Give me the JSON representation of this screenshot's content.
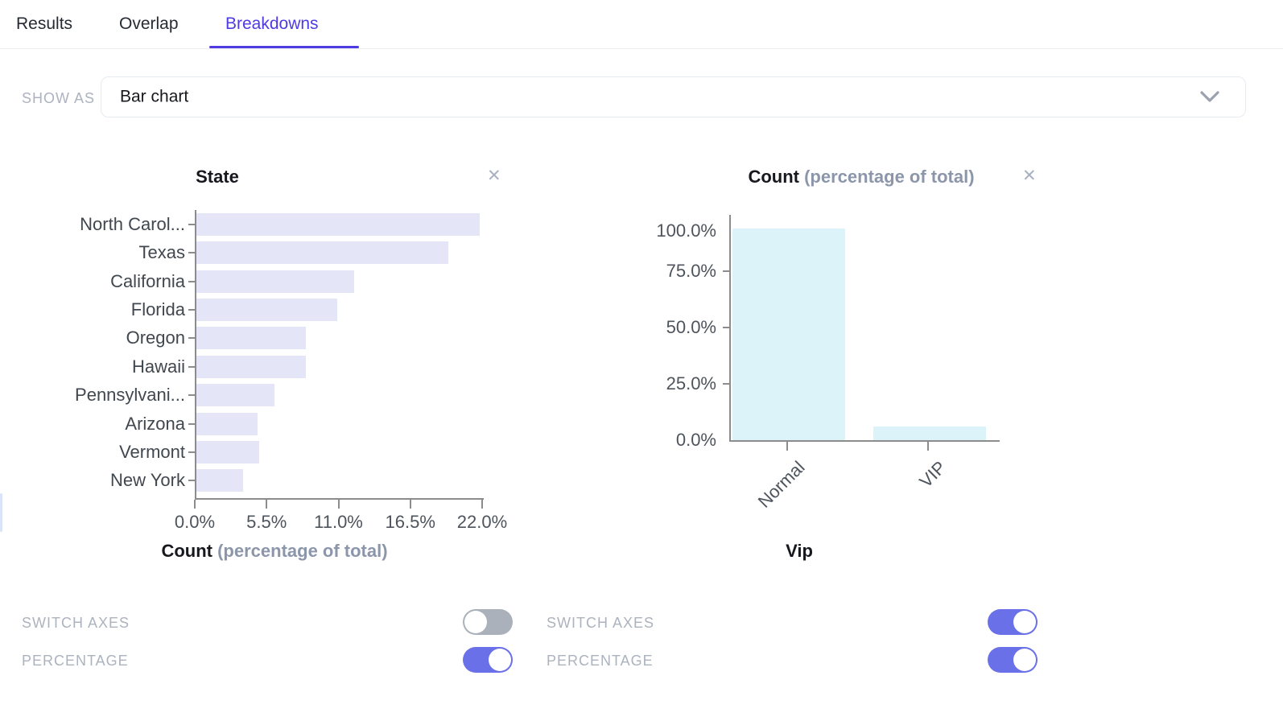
{
  "header": {
    "tabs": [
      {
        "label": "Results",
        "active": false
      },
      {
        "label": "Overlap",
        "active": false
      },
      {
        "label": "Breakdowns",
        "active": true
      }
    ]
  },
  "show_as": {
    "label": "SHOW AS",
    "value": "Bar chart"
  },
  "icons": {
    "close": "✕",
    "chevron_down": "chevron-down"
  },
  "colors": {
    "accent": "#4E3BE2",
    "toggle_on": "#6A70E8",
    "toggle_off": "#ABB1BA",
    "left_bar_fill": "#E4E6F8",
    "right_bar_fill": "#DDF3FA",
    "axis": "#8C8C8C"
  },
  "panels": [
    {
      "title_main": "State",
      "title_secondary": "",
      "axis_title_main": "Count",
      "axis_title_secondary": "(percentage of total)",
      "toggles": [
        {
          "label": "SWITCH AXES",
          "on": false
        },
        {
          "label": "PERCENTAGE",
          "on": true
        }
      ]
    },
    {
      "title_main": "Count",
      "title_secondary": "(percentage of total)",
      "axis_title_main": "Vip",
      "axis_title_secondary": "",
      "toggles": [
        {
          "label": "SWITCH AXES",
          "on": true
        },
        {
          "label": "PERCENTAGE",
          "on": true
        }
      ]
    }
  ],
  "chart_data": [
    {
      "type": "bar",
      "orientation": "horizontal",
      "title": "State",
      "categories": [
        "North Carol...",
        "Texas",
        "California",
        "Florida",
        "Oregon",
        "Hawaii",
        "Pennsylvani...",
        "Arizona",
        "Vermont",
        "New York"
      ],
      "values": [
        21.7,
        19.3,
        12.1,
        10.8,
        8.4,
        8.4,
        6.0,
        4.7,
        4.8,
        3.6
      ],
      "value_unit": "%",
      "xlabel": "Count (percentage of total)",
      "xlim": [
        0,
        22
      ],
      "xtick_labels": [
        "0.0%",
        "5.5%",
        "11.0%",
        "16.5%",
        "22.0%"
      ],
      "bar_color": "#E4E6F8",
      "grid": false,
      "legend": false
    },
    {
      "type": "bar",
      "orientation": "vertical",
      "title": "Count (percentage of total)",
      "categories": [
        "Normal",
        "VIP"
      ],
      "values": [
        94,
        6
      ],
      "value_unit": "%",
      "xlabel": "Vip",
      "ylim": [
        0,
        100
      ],
      "ytick_labels": [
        "0.0%",
        "25.0%",
        "50.0%",
        "75.0%",
        "100.0%"
      ],
      "bar_color": "#DDF3FA",
      "grid": false,
      "legend": false
    }
  ]
}
